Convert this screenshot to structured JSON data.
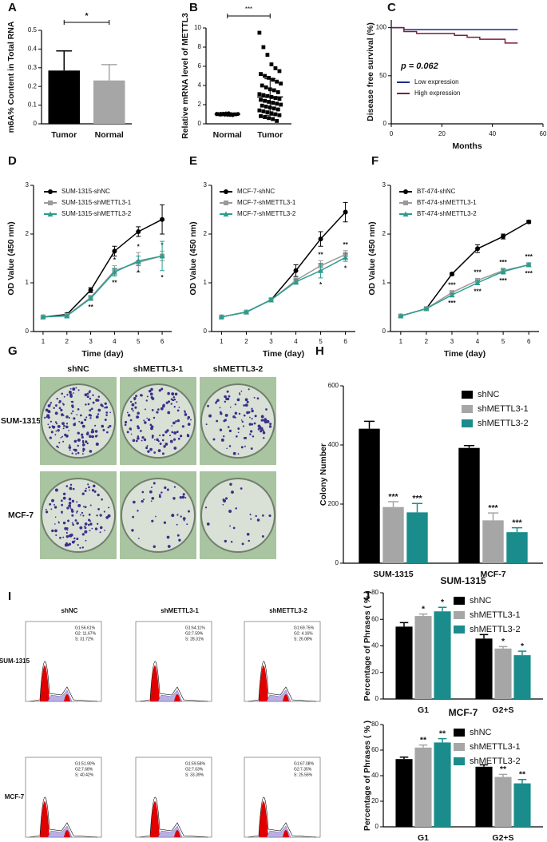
{
  "chart_data": [
    {
      "panel": "A",
      "type": "bar",
      "ylabel": "m6A% Content  in Total RNA",
      "categories": [
        "Tumor",
        "Normal"
      ],
      "values": [
        0.285,
        0.232
      ],
      "errors": [
        0.105,
        0.085
      ],
      "colors": [
        "#000000",
        "#a6a6a6"
      ],
      "ylim": [
        0,
        0.5
      ],
      "yticks": [
        0,
        0.1,
        0.2,
        0.3,
        0.4,
        0.5
      ],
      "annotation": "*"
    },
    {
      "panel": "B",
      "type": "dot",
      "ylabel": "Relative  mRNA level of METTL3",
      "categories": [
        "Normal",
        "Tumor"
      ],
      "markers": [
        "circle",
        "square"
      ],
      "groups": [
        [
          1.0,
          1.05,
          0.95,
          1.1,
          0.9,
          1.0,
          1.02,
          0.98,
          1.08,
          0.92,
          1.0,
          1.03,
          0.97,
          1.06,
          0.94,
          1.01,
          0.99,
          1.04,
          0.96,
          1.0
        ],
        [
          9.5,
          8.0,
          7.2,
          6.2,
          5.8,
          5.5,
          5.2,
          5.0,
          4.8,
          4.6,
          4.4,
          4.2,
          4.0,
          3.8,
          3.6,
          3.5,
          3.3,
          3.1,
          3.0,
          2.9,
          2.8,
          2.7,
          2.6,
          2.5,
          2.4,
          2.3,
          2.2,
          2.1,
          2.0,
          1.9,
          1.8,
          1.7,
          1.6,
          1.5,
          1.4,
          1.3,
          1.2,
          1.1,
          1.0,
          0.9,
          0.8,
          0.7,
          0.6,
          0.5,
          0.3
        ]
      ],
      "means": [
        1.0,
        2.8
      ],
      "sds": [
        0.1,
        1.9
      ],
      "ylim": [
        0,
        10
      ],
      "yticks": [
        0,
        2,
        4,
        6,
        8,
        10
      ],
      "annotation": "***"
    },
    {
      "panel": "C",
      "type": "line",
      "step": true,
      "xlabel": "Months",
      "ylabel": "Disease free survival (%)",
      "annotation": "p = 0.062",
      "xlim": [
        0,
        60
      ],
      "xticks": [
        0,
        20,
        40,
        60
      ],
      "ylim": [
        0,
        108
      ],
      "yticks": [
        0,
        50,
        100
      ],
      "series": [
        {
          "name": "Low expression",
          "color": "#1f2a8c",
          "x": [
            0,
            5,
            50
          ],
          "values": [
            100,
            98,
            98
          ]
        },
        {
          "name": "High expression",
          "color": "#7a1f3d",
          "x": [
            0,
            5,
            10,
            25,
            30,
            35,
            45,
            50
          ],
          "values": [
            100,
            96,
            94,
            92,
            90,
            88,
            84,
            84
          ]
        }
      ]
    },
    {
      "panel": "D",
      "type": "line",
      "xlabel": "Time (day)",
      "ylabel": "OD  Value (450 nm)",
      "x": [
        1,
        2,
        3,
        4,
        5,
        6
      ],
      "xlim": [
        0.6,
        6.4
      ],
      "xticks": [
        1,
        2,
        3,
        4,
        5,
        6
      ],
      "ylim": [
        0,
        3
      ],
      "yticks": [
        0,
        1,
        2,
        3
      ],
      "series": [
        {
          "name": "SUM-1315-shNC",
          "color": "#000000",
          "marker": "circle",
          "values": [
            0.3,
            0.35,
            0.85,
            1.65,
            2.05,
            2.3
          ],
          "errors": [
            0.02,
            0.03,
            0.05,
            0.1,
            0.1,
            0.3
          ]
        },
        {
          "name": "SUM-1315-shMETTL3-1",
          "color": "#9a9a9a",
          "marker": "square",
          "values": [
            0.3,
            0.33,
            0.7,
            1.25,
            1.42,
            1.55
          ],
          "errors": [
            0.02,
            0.02,
            0.04,
            0.1,
            0.2,
            0.1
          ],
          "significance": [
            null,
            null,
            null,
            "*",
            "*",
            "*"
          ]
        },
        {
          "name": "SUM-1315-shMETTL3-2",
          "color": "#2a9d8f",
          "marker": "triangle",
          "values": [
            0.3,
            0.32,
            0.68,
            1.22,
            1.45,
            1.55
          ],
          "errors": [
            0.02,
            0.02,
            0.04,
            0.08,
            0.1,
            0.3
          ],
          "significance": [
            null,
            null,
            "**",
            "**",
            "*",
            "*"
          ]
        }
      ]
    },
    {
      "panel": "E",
      "type": "line",
      "xlabel": "Time (day)",
      "ylabel": "OD  Value (450 nm)",
      "x": [
        1,
        2,
        3,
        4,
        5,
        6
      ],
      "xlim": [
        0.6,
        6.4
      ],
      "xticks": [
        1,
        2,
        3,
        4,
        5,
        6
      ],
      "ylim": [
        0,
        3
      ],
      "yticks": [
        0,
        1,
        2,
        3
      ],
      "series": [
        {
          "name": "MCF-7-shNC",
          "color": "#000000",
          "marker": "circle",
          "values": [
            0.3,
            0.4,
            0.65,
            1.25,
            1.9,
            2.45
          ],
          "errors": [
            0.02,
            0.02,
            0.04,
            0.12,
            0.15,
            0.2
          ]
        },
        {
          "name": "MCF-7-shMETTL3-1",
          "color": "#9a9a9a",
          "marker": "square",
          "values": [
            0.3,
            0.4,
            0.65,
            1.05,
            1.35,
            1.58
          ],
          "errors": [
            0.02,
            0.02,
            0.03,
            0.05,
            0.1,
            0.08
          ],
          "significance": [
            null,
            null,
            null,
            null,
            "**",
            "**"
          ]
        },
        {
          "name": "MCF-7-shMETTL3-2",
          "color": "#2a9d8f",
          "marker": "triangle",
          "values": [
            0.3,
            0.4,
            0.65,
            1.02,
            1.25,
            1.52
          ],
          "errors": [
            0.02,
            0.02,
            0.03,
            0.05,
            0.15,
            0.08
          ],
          "significance": [
            null,
            null,
            null,
            null,
            "*",
            "*"
          ]
        }
      ]
    },
    {
      "panel": "F",
      "type": "line",
      "xlabel": "Time (day)",
      "ylabel": "OD  Value (450 nm)",
      "x": [
        1,
        2,
        3,
        4,
        5,
        6
      ],
      "xlim": [
        0.6,
        6.4
      ],
      "xticks": [
        1,
        2,
        3,
        4,
        5,
        6
      ],
      "ylim": [
        0,
        3
      ],
      "yticks": [
        0,
        1,
        2,
        3
      ],
      "series": [
        {
          "name": "BT-474-shNC",
          "color": "#000000",
          "marker": "circle",
          "values": [
            0.32,
            0.47,
            1.18,
            1.7,
            1.95,
            2.25
          ],
          "errors": [
            0.02,
            0.02,
            0.03,
            0.08,
            0.05,
            0.03
          ]
        },
        {
          "name": "BT-474-shMETTL3-1",
          "color": "#9a9a9a",
          "marker": "square",
          "values": [
            0.32,
            0.47,
            0.8,
            1.05,
            1.25,
            1.37
          ],
          "errors": [
            0.02,
            0.02,
            0.03,
            0.04,
            0.05,
            0.04
          ],
          "significance": [
            null,
            null,
            "***",
            "***",
            "***",
            "***"
          ]
        },
        {
          "name": "BT-474-shMETTL3-2",
          "color": "#2a9d8f",
          "marker": "triangle",
          "values": [
            0.32,
            0.47,
            0.75,
            1.0,
            1.23,
            1.37
          ],
          "errors": [
            0.02,
            0.02,
            0.03,
            0.04,
            0.05,
            0.04
          ],
          "significance": [
            null,
            null,
            "***",
            "***",
            "***",
            "***"
          ]
        }
      ]
    },
    {
      "panel": "H",
      "type": "bar",
      "ylabel": "Colony Number",
      "categories": [
        "SUM-1315",
        "MCF-7"
      ],
      "ylim": [
        0,
        600
      ],
      "yticks": [
        0,
        200,
        400,
        600
      ],
      "series": [
        {
          "name": "shNC",
          "color": "#000000",
          "values": [
            455,
            390
          ],
          "errors": [
            25,
            8
          ]
        },
        {
          "name": "shMETTL3-1",
          "color": "#a6a6a6",
          "values": [
            190,
            145
          ],
          "errors": [
            18,
            25
          ],
          "significance": [
            "***",
            "***"
          ]
        },
        {
          "name": "shMETTL3-2",
          "color": "#1a8c8c",
          "values": [
            172,
            105
          ],
          "errors": [
            30,
            15
          ],
          "significance": [
            "***",
            "***"
          ]
        }
      ]
    },
    {
      "panel": "J",
      "type": "bar",
      "title": "SUM-1315",
      "ylabel": "Percentage of Phrases ( % )",
      "categories": [
        "G1",
        "G2+S"
      ],
      "ylim": [
        0,
        80
      ],
      "yticks": [
        0,
        20,
        40,
        60,
        80
      ],
      "series": [
        {
          "name": "shNC",
          "color": "#000000",
          "values": [
            54.5,
            45.5
          ],
          "errors": [
            3,
            3
          ]
        },
        {
          "name": "shMETTL3-1",
          "color": "#a6a6a6",
          "values": [
            62.5,
            38
          ],
          "errors": [
            1.5,
            1.5
          ],
          "significance": [
            "*",
            "*"
          ]
        },
        {
          "name": "shMETTL3-2",
          "color": "#1a8c8c",
          "values": [
            66,
            33
          ],
          "errors": [
            3,
            3
          ],
          "significance": [
            "*",
            "*"
          ]
        }
      ]
    },
    {
      "type": "bar",
      "title": "MCF-7",
      "ylabel": "Percentage of Phrases ( % )",
      "categories": [
        "G1",
        "G2+S"
      ],
      "ylim": [
        0,
        80
      ],
      "yticks": [
        0,
        20,
        40,
        60,
        80
      ],
      "series": [
        {
          "name": "shNC",
          "color": "#000000",
          "values": [
            53,
            47
          ],
          "errors": [
            1.5,
            1.5
          ]
        },
        {
          "name": "shMETTL3-1",
          "color": "#a6a6a6",
          "values": [
            62,
            39
          ],
          "errors": [
            2,
            2
          ],
          "significance": [
            "**",
            "**"
          ]
        },
        {
          "name": "shMETTL3-2",
          "color": "#1a8c8c",
          "values": [
            66,
            34
          ],
          "errors": [
            3,
            3
          ],
          "significance": [
            "**",
            "**"
          ]
        }
      ]
    }
  ],
  "panel_g": {
    "label": "G",
    "columns": [
      "shNC",
      "shMETTL3-1",
      "shMETTL3-2"
    ],
    "rows": [
      "SUM-1315",
      "MCF-7"
    ]
  },
  "panel_i": {
    "label": "I",
    "columns": [
      "shNC",
      "shMETTL3-1",
      "shMETTL3-2"
    ],
    "rows": [
      {
        "name": "SUM-1315",
        "stats": [
          [
            "G1:56.61%",
            "G2: 11.67%",
            "S: 31.72%"
          ],
          [
            "G1:64.11%",
            "G2:7.59%",
            "S: 28.31%"
          ],
          [
            "G1:69.75%",
            "G2: 4.16%",
            "S: 26.08%"
          ]
        ]
      },
      {
        "name": "MCF-7",
        "stats": [
          [
            "G1:51.90%",
            "G2:7.68%",
            "S: 40.42%"
          ],
          [
            "G1:59.58%",
            "G2:7.03%",
            "S: 33.39%"
          ],
          [
            "G1:67.08%",
            "G2:7.35%",
            "S: 25.56%"
          ]
        ]
      }
    ]
  }
}
